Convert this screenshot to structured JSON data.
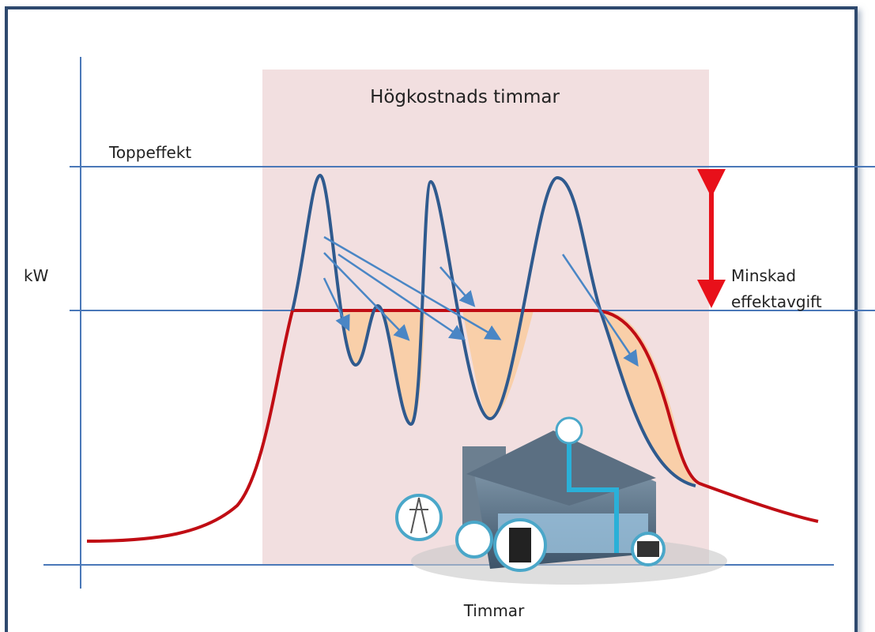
{
  "title": "Högkostnads timmar",
  "peak_label": "Toppeffekt",
  "y_axis_label": "kW",
  "x_axis_label": "Timmar",
  "reduction_label": [
    "Minskad",
    "effektavgift"
  ]
}
